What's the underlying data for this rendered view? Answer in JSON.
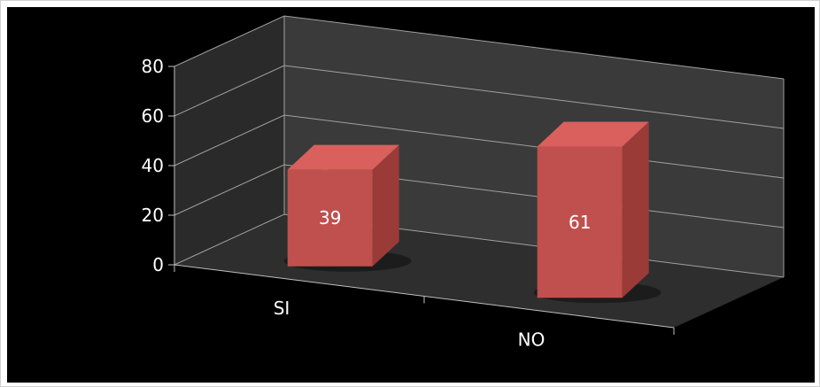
{
  "chart_data": {
    "type": "bar",
    "categories": [
      "SI",
      "NO"
    ],
    "values": [
      39,
      61
    ],
    "data_labels": [
      "39",
      "61"
    ],
    "ylim": [
      0,
      80
    ],
    "yticks": [
      "0",
      "20",
      "40",
      "60",
      "80"
    ],
    "grid": true,
    "legend": "none",
    "title": "",
    "xlabel": "",
    "ylabel": ""
  },
  "colors": {
    "background": "#000000",
    "bar_front": "#c0504d",
    "bar_top": "#d9605c",
    "bar_side": "#9a3b38",
    "wall": "#3a3a3a",
    "floor": "#2e2e2e",
    "grid": "#a0a0a0"
  }
}
